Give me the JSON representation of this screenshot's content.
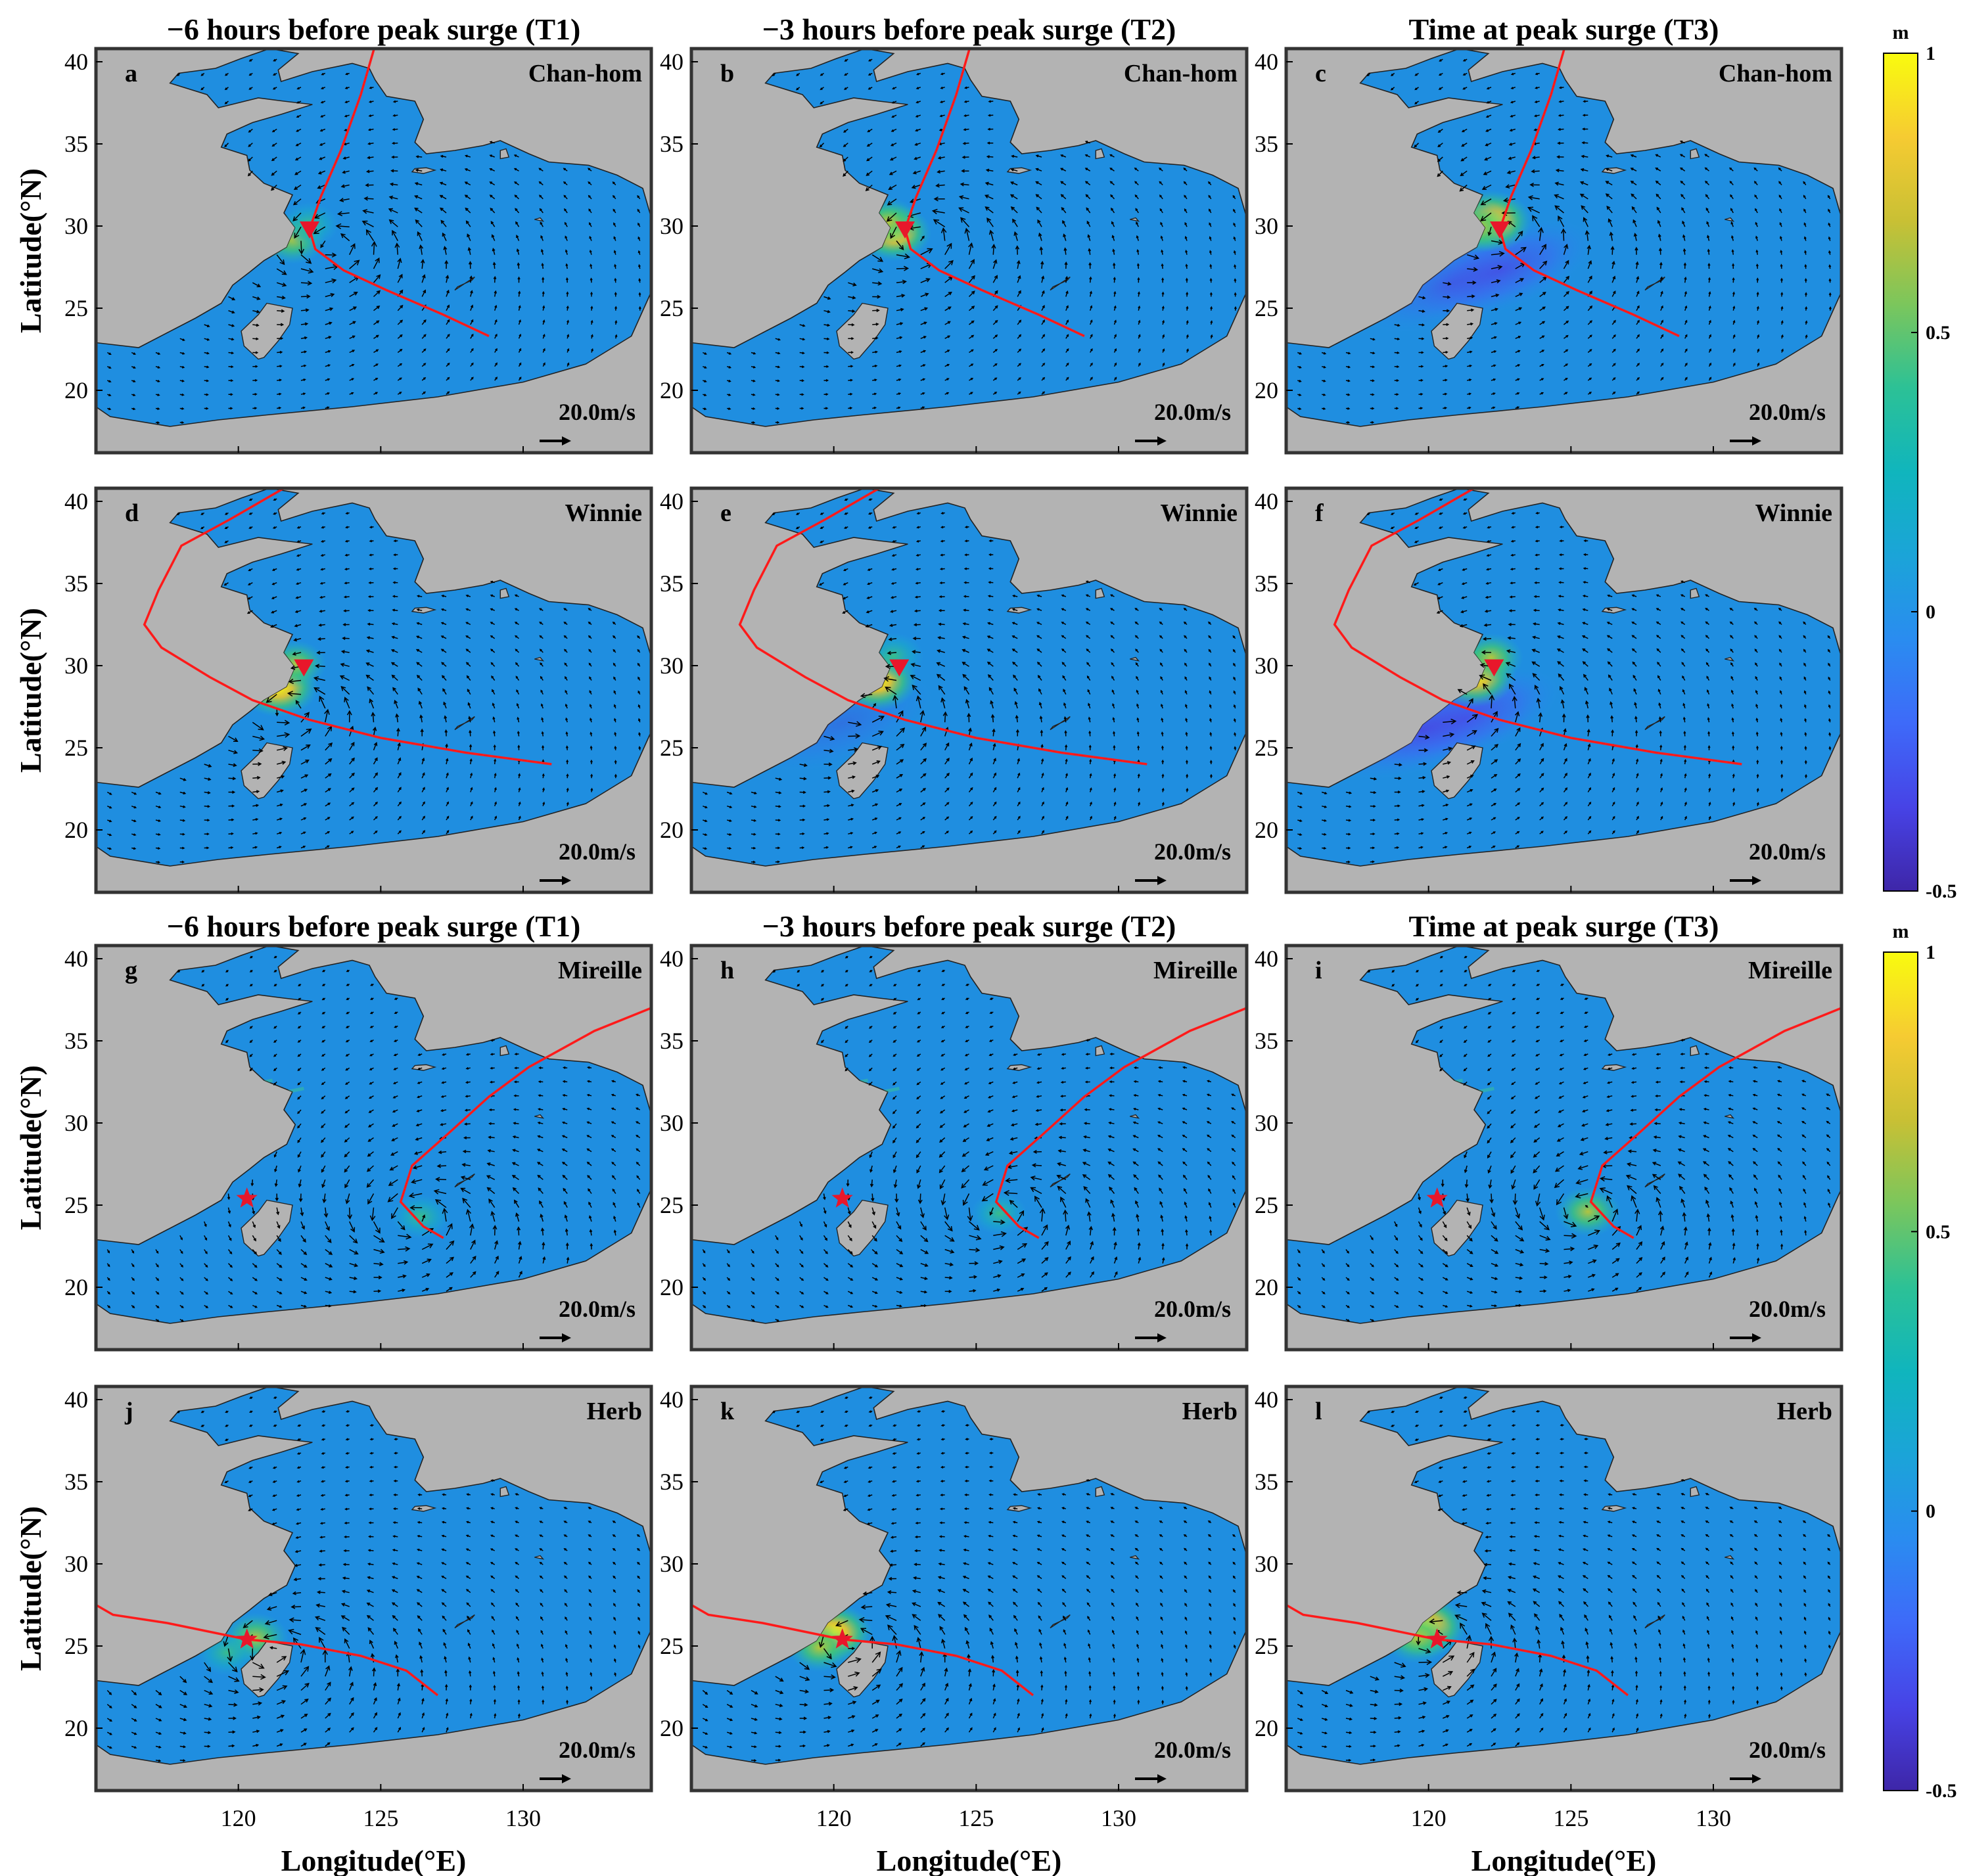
{
  "column_titles": [
    "−6 hours before peak surge (T1)",
    "−3 hours before peak surge (T2)",
    "Time at peak surge (T3)"
  ],
  "axes": {
    "ylabel": "Latitude(°N)",
    "xlabel": "Longitude(°E)",
    "xlim": [
      115,
      134.5
    ],
    "ylim": [
      16.2,
      40.8
    ],
    "yticks": [
      "40",
      "35",
      "30",
      "25",
      "20"
    ],
    "xticks": [
      "120",
      "125",
      "130"
    ]
  },
  "colorbar": {
    "unit": "m",
    "tick_labels": [
      "1",
      "0.5",
      "0",
      "-0.5"
    ],
    "range": [
      -0.5,
      1
    ],
    "colormap": "parula"
  },
  "scale_arrow_label": "20.0m/s",
  "colors": {
    "land": "#b3b3b3",
    "sea": "#1f8ee0",
    "track": "#ff1a1a",
    "marker": "#e8172b",
    "frame": "#333333"
  },
  "storms": [
    {
      "name": "Chan-hom",
      "marker": "triangle",
      "marker_lonlat": [
        122.5,
        29.8
      ],
      "track": [
        [
          128.8,
          23.3
        ],
        [
          127.2,
          24.6
        ],
        [
          125.2,
          26.1
        ],
        [
          123.7,
          27.3
        ],
        [
          122.7,
          28.6
        ],
        [
          122.5,
          29.8
        ],
        [
          122.9,
          31.8
        ],
        [
          123.6,
          34.6
        ],
        [
          124.3,
          38
        ],
        [
          124.8,
          41
        ]
      ]
    },
    {
      "name": "Winnie",
      "marker": "triangle",
      "marker_lonlat": [
        122.3,
        29.9
      ],
      "track": [
        [
          131,
          24
        ],
        [
          128,
          24.7
        ],
        [
          125,
          25.6
        ],
        [
          122.5,
          26.7
        ],
        [
          120.5,
          27.9
        ],
        [
          119,
          29.3
        ],
        [
          117.3,
          31.1
        ],
        [
          116.7,
          32.5
        ],
        [
          117.2,
          34.6
        ],
        [
          118,
          37.3
        ],
        [
          119.7,
          38.9
        ],
        [
          121.6,
          40.8
        ]
      ]
    },
    {
      "name": "Mireille",
      "marker": "star",
      "marker_lonlat": [
        120.3,
        25.4
      ],
      "track": [
        [
          127.2,
          23
        ],
        [
          126.5,
          23.7
        ],
        [
          125.7,
          25.2
        ],
        [
          126.1,
          27.4
        ],
        [
          127.4,
          29.4
        ],
        [
          128.8,
          31.6
        ],
        [
          130.2,
          33.4
        ],
        [
          132.5,
          35.6
        ],
        [
          134.5,
          37
        ]
      ]
    },
    {
      "name": "Herb",
      "marker": "star",
      "marker_lonlat": [
        120.3,
        25.4
      ],
      "track": [
        [
          115,
          27.5
        ],
        [
          115.6,
          26.9
        ],
        [
          117.5,
          26.4
        ],
        [
          120.3,
          25.4
        ],
        [
          122.2,
          25.1
        ],
        [
          124.3,
          24.4
        ],
        [
          125.9,
          23.5
        ],
        [
          127,
          22
        ]
      ]
    }
  ],
  "panels": [
    {
      "letter": "a",
      "storm": 0,
      "time": 0,
      "center": [
        123.3,
        28.8
      ],
      "highs": [
        [
          121.9,
          29.2,
          0.55
        ],
        [
          122.5,
          30.1,
          0.35
        ]
      ],
      "lows": []
    },
    {
      "letter": "b",
      "storm": 0,
      "time": 1,
      "center": [
        122.9,
        29.3
      ],
      "highs": [
        [
          122.1,
          29.6,
          0.8
        ],
        [
          121.9,
          30.3,
          0.45
        ]
      ],
      "lows": []
    },
    {
      "letter": "c",
      "storm": 0,
      "time": 2,
      "center": [
        122.6,
        29.7
      ],
      "highs": [
        [
          122.2,
          30.3,
          0.95
        ],
        [
          121.7,
          29.9,
          0.6
        ]
      ],
      "lows": [
        [
          122.5,
          27.3,
          -0.35
        ],
        [
          120.8,
          26.5,
          -0.2
        ]
      ]
    },
    {
      "letter": "d",
      "storm": 1,
      "time": 0,
      "center": [
        121.7,
        27.3
      ],
      "highs": [
        [
          121.4,
          28.7,
          0.9
        ],
        [
          122.0,
          30.1,
          0.45
        ]
      ],
      "lows": []
    },
    {
      "letter": "e",
      "storm": 1,
      "time": 1,
      "center": [
        121.2,
        27.6
      ],
      "highs": [
        [
          121.5,
          29.1,
          0.95
        ],
        [
          122.1,
          30.6,
          0.4
        ]
      ],
      "lows": [
        [
          120.3,
          26.5,
          -0.15
        ]
      ]
    },
    {
      "letter": "f",
      "storm": 1,
      "time": 2,
      "center": [
        120.9,
        27.9
      ],
      "highs": [
        [
          121.6,
          29.4,
          1.0
        ],
        [
          122.2,
          30.5,
          0.5
        ]
      ],
      "lows": [
        [
          121.3,
          26.8,
          -0.4
        ],
        [
          119.8,
          26.1,
          -0.3
        ]
      ]
    },
    {
      "letter": "g",
      "storm": 2,
      "time": 0,
      "center": [
        126.2,
        24.2
      ],
      "highs": [
        [
          126.4,
          24.3,
          0.35
        ]
      ],
      "lows": []
    },
    {
      "letter": "h",
      "storm": 2,
      "time": 1,
      "center": [
        125.9,
        24.6
      ],
      "highs": [
        [
          125.8,
          24.5,
          0.3
        ]
      ],
      "lows": []
    },
    {
      "letter": "i",
      "storm": 2,
      "time": 2,
      "center": [
        125.5,
        24.8
      ],
      "highs": [
        [
          125.6,
          24.6,
          0.55
        ]
      ],
      "lows": []
    },
    {
      "letter": "j",
      "storm": 3,
      "time": 0,
      "center": [
        121.2,
        24.6
      ],
      "highs": [
        [
          120.6,
          25.5,
          0.55
        ],
        [
          119.6,
          24.6,
          0.4
        ]
      ],
      "lows": []
    },
    {
      "letter": "k",
      "storm": 3,
      "time": 1,
      "center": [
        120.6,
        25.1
      ],
      "highs": [
        [
          120.0,
          25.8,
          0.85
        ],
        [
          119.5,
          24.9,
          0.5
        ]
      ],
      "lows": []
    },
    {
      "letter": "l",
      "storm": 3,
      "time": 2,
      "center": [
        120.2,
        25.5
      ],
      "highs": [
        [
          119.9,
          26.2,
          0.95
        ],
        [
          119.6,
          25.5,
          0.6
        ]
      ],
      "lows": []
    }
  ]
}
